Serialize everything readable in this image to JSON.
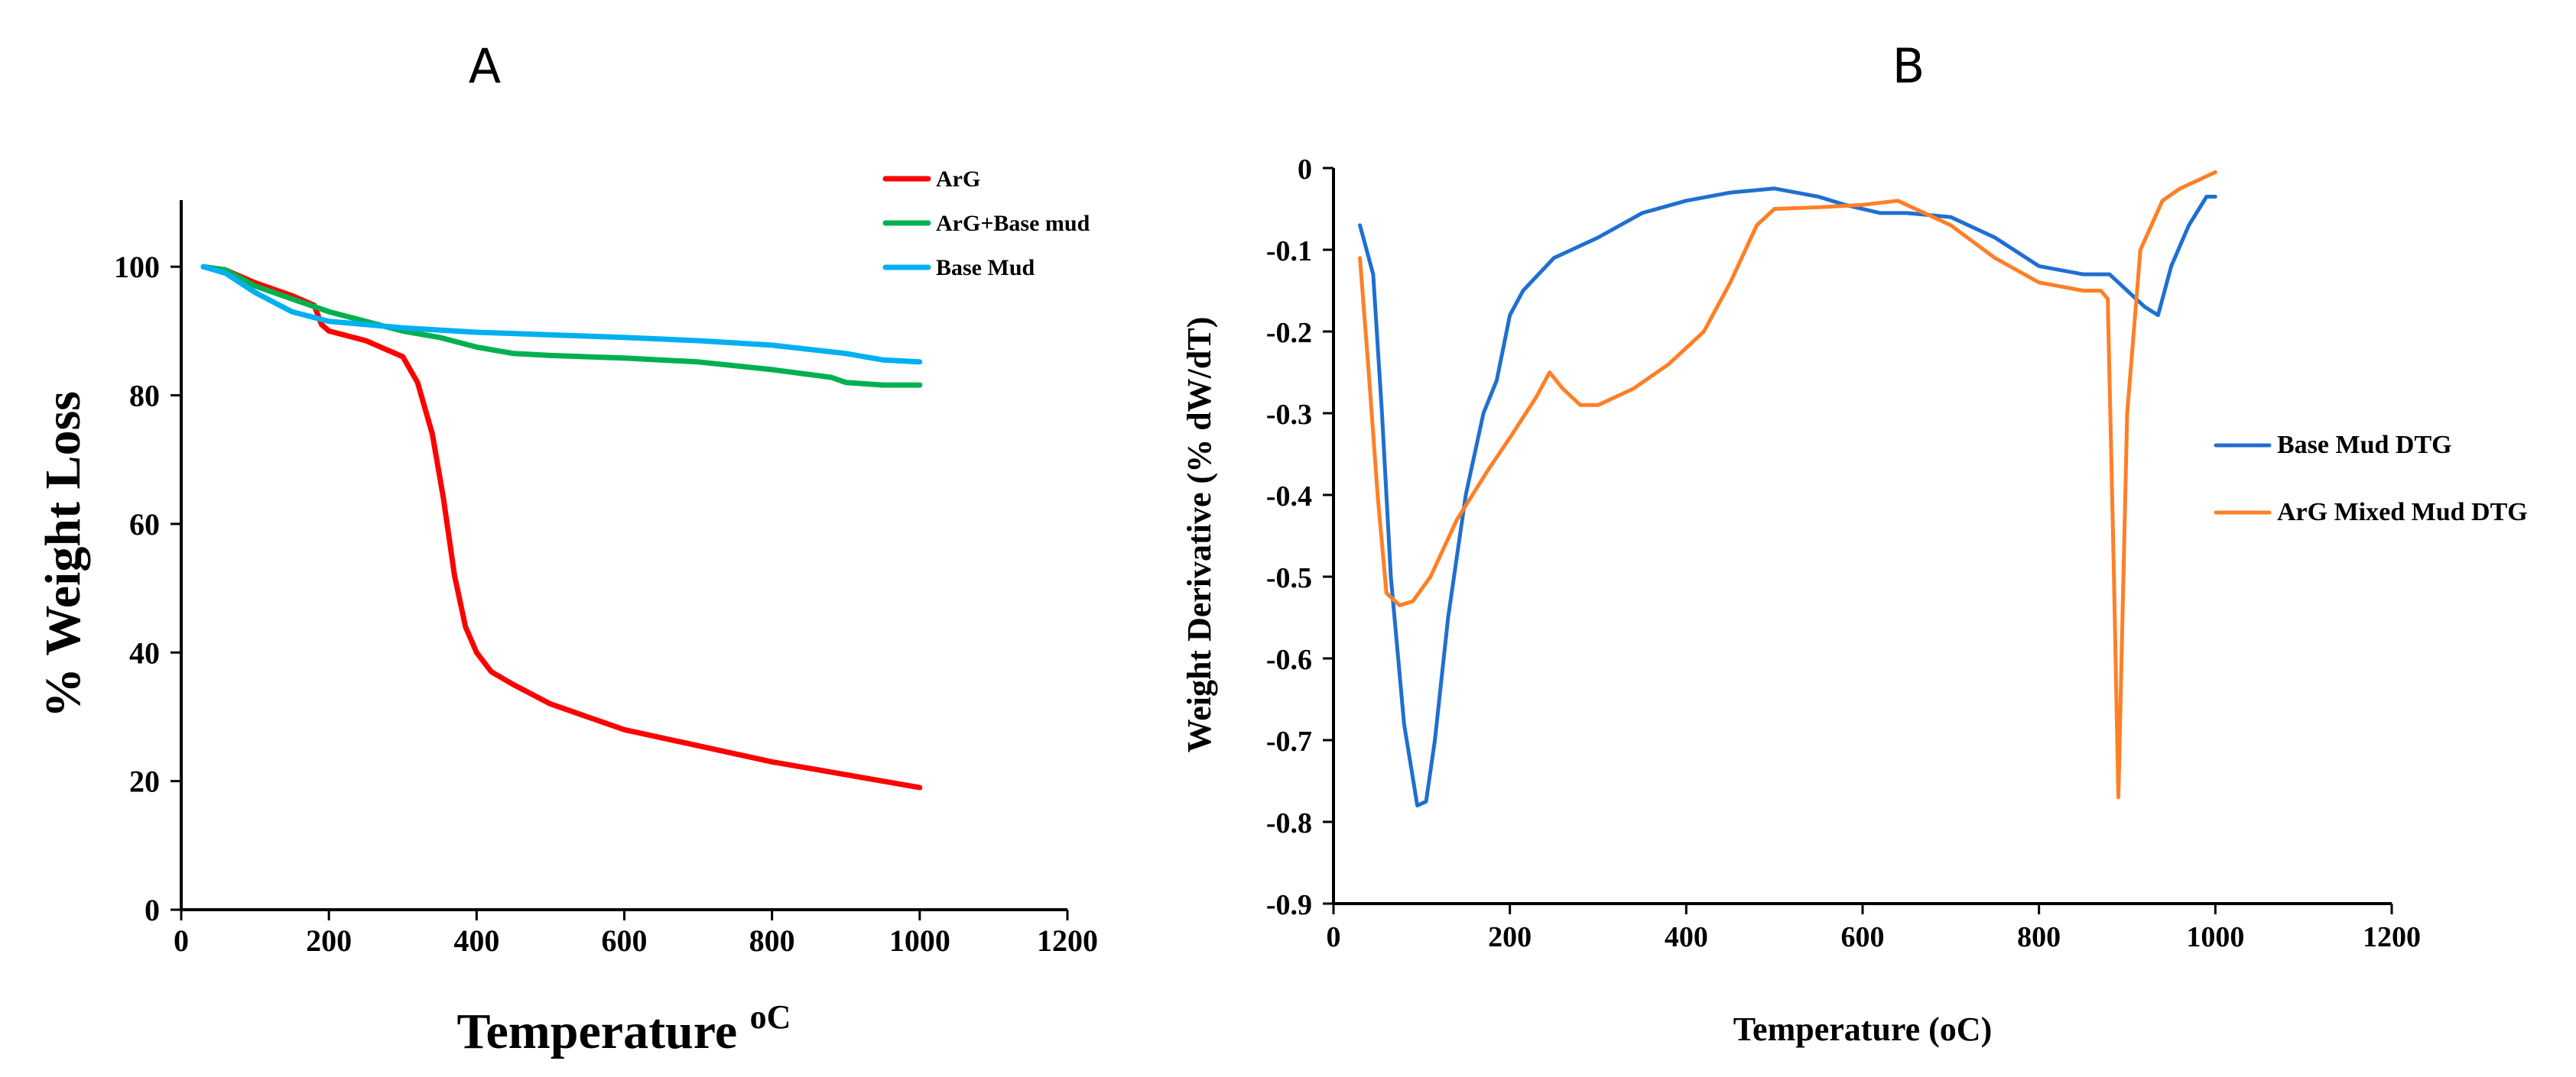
{
  "chart_data": [
    {
      "type": "line",
      "panel_label": "A",
      "title": "",
      "xlabel": "Temperature",
      "xlabel_unit": "oC",
      "ylabel": "% Weight Loss",
      "xlim": [
        0,
        1200
      ],
      "ylim": [
        0,
        110
      ],
      "xticks": [
        0,
        200,
        400,
        600,
        800,
        1000,
        1200
      ],
      "yticks": [
        0,
        20,
        40,
        60,
        80,
        100
      ],
      "grid": false,
      "legend_position": "top-right",
      "series": [
        {
          "name": "ArG",
          "color": "#ff0000",
          "x": [
            30,
            60,
            100,
            150,
            180,
            190,
            200,
            250,
            300,
            320,
            340,
            355,
            370,
            385,
            400,
            420,
            450,
            500,
            600,
            700,
            800,
            900,
            1000
          ],
          "y": [
            100,
            99.5,
            97.5,
            95.5,
            94,
            91,
            90,
            88.5,
            86,
            82,
            74,
            64,
            52,
            44,
            40,
            37,
            35,
            32,
            28,
            25.5,
            23,
            21,
            19
          ]
        },
        {
          "name": "ArG+Base mud",
          "color": "#00b050",
          "x": [
            30,
            60,
            100,
            150,
            200,
            250,
            300,
            350,
            400,
            450,
            500,
            600,
            700,
            800,
            880,
            900,
            950,
            1000
          ],
          "y": [
            100,
            99.5,
            97,
            95,
            93,
            91.5,
            90,
            89,
            87.5,
            86.5,
            86.2,
            85.8,
            85.2,
            84,
            82.8,
            82,
            81.6,
            81.6
          ]
        },
        {
          "name": "Base Mud",
          "color": "#00b0f0",
          "x": [
            30,
            60,
            100,
            150,
            200,
            250,
            300,
            400,
            500,
            600,
            700,
            800,
            900,
            950,
            1000
          ],
          "y": [
            100,
            99,
            96,
            93,
            91.5,
            91,
            90.5,
            89.8,
            89.4,
            89,
            88.5,
            87.8,
            86.5,
            85.5,
            85.2
          ]
        }
      ]
    },
    {
      "type": "line",
      "panel_label": "B",
      "title": "",
      "xlabel": "Temperature",
      "xlabel_unit": "(oC)",
      "ylabel": "Weight Derivative (% dW/dT)",
      "xlim": [
        0,
        1200
      ],
      "ylim": [
        -0.9,
        0
      ],
      "xticks": [
        0,
        200,
        400,
        600,
        800,
        1000,
        1200
      ],
      "yticks": [
        0,
        -0.1,
        -0.2,
        -0.3,
        -0.4,
        -0.5,
        -0.6,
        -0.7,
        -0.8,
        -0.9
      ],
      "ytick_labels": [
        "0",
        "-0.1",
        "-0.2",
        "-0.3",
        "-0.4",
        "-0.5",
        "-0.6",
        "-0.7",
        "-0.8",
        "-0.9"
      ],
      "grid": false,
      "legend_position": "right",
      "series": [
        {
          "name": "Base Mud DTG",
          "color": "#1f6fd1",
          "x": [
            30,
            45,
            55,
            65,
            80,
            95,
            105,
            115,
            130,
            150,
            170,
            185,
            200,
            215,
            250,
            300,
            350,
            400,
            450,
            500,
            550,
            580,
            620,
            650,
            700,
            750,
            800,
            850,
            880,
            900,
            920,
            935,
            950,
            970,
            990,
            1000
          ],
          "y": [
            -0.07,
            -0.13,
            -0.3,
            -0.5,
            -0.68,
            -0.78,
            -0.775,
            -0.7,
            -0.55,
            -0.4,
            -0.3,
            -0.26,
            -0.18,
            -0.15,
            -0.11,
            -0.085,
            -0.055,
            -0.04,
            -0.03,
            -0.025,
            -0.035,
            -0.045,
            -0.055,
            -0.055,
            -0.06,
            -0.085,
            -0.12,
            -0.13,
            -0.13,
            -0.15,
            -0.17,
            -0.18,
            -0.12,
            -0.07,
            -0.035,
            -0.035
          ]
        },
        {
          "name": "ArG Mixed Mud DTG",
          "color": "#ff7f27",
          "x": [
            30,
            40,
            50,
            60,
            75,
            90,
            110,
            140,
            175,
            200,
            230,
            245,
            260,
            280,
            300,
            340,
            380,
            420,
            450,
            480,
            500,
            550,
            600,
            640,
            700,
            750,
            800,
            850,
            870,
            878,
            885,
            890,
            900,
            915,
            940,
            960,
            980,
            1000
          ],
          "y": [
            -0.11,
            -0.25,
            -0.4,
            -0.52,
            -0.535,
            -0.53,
            -0.5,
            -0.43,
            -0.37,
            -0.33,
            -0.28,
            -0.25,
            -0.27,
            -0.29,
            -0.29,
            -0.27,
            -0.24,
            -0.2,
            -0.14,
            -0.07,
            -0.05,
            -0.048,
            -0.045,
            -0.04,
            -0.07,
            -0.11,
            -0.14,
            -0.15,
            -0.15,
            -0.16,
            -0.5,
            -0.77,
            -0.3,
            -0.1,
            -0.04,
            -0.025,
            -0.015,
            -0.005
          ]
        }
      ]
    }
  ]
}
